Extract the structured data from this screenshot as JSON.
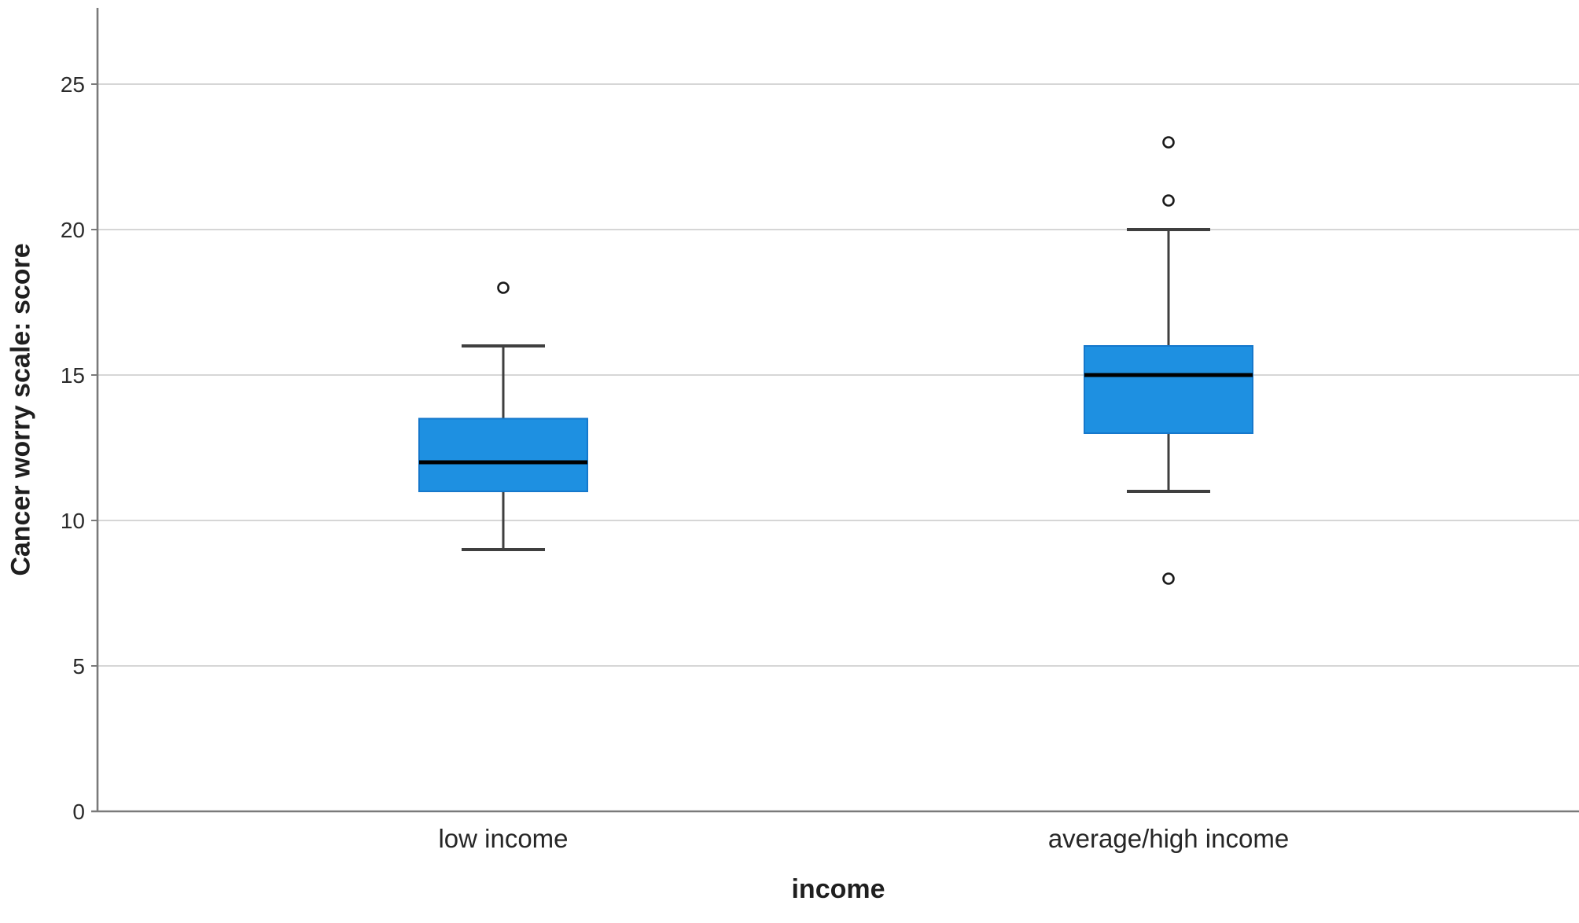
{
  "chart_data": {
    "type": "box",
    "title": "",
    "xlabel": "income",
    "ylabel": "Cancer worry scale: score",
    "categories": [
      "low income",
      "average/high income"
    ],
    "y_ticks": [
      0,
      5,
      10,
      15,
      20,
      25
    ],
    "ylim": [
      0,
      27.6
    ],
    "grid": "horizontal",
    "legend": "none",
    "boxes": [
      {
        "category": "low income",
        "whisker_low": 9,
        "q1": 11,
        "median": 12,
        "q3": 13.5,
        "whisker_high": 16,
        "outliers": [
          18
        ]
      },
      {
        "category": "average/high income",
        "whisker_low": 11,
        "q1": 13,
        "median": 15,
        "q3": 16,
        "whisker_high": 20,
        "outliers": [
          8,
          21,
          23
        ]
      }
    ],
    "colors": {
      "box_fill": "#1E90E1",
      "box_border": "#1578CC",
      "median": "#000000",
      "whisker": "#3F3F3F",
      "outlier_stroke": "#1A1A1A",
      "gridline": "#C9C9C9",
      "axis": "#7A7A7A",
      "text": "#262626"
    }
  }
}
